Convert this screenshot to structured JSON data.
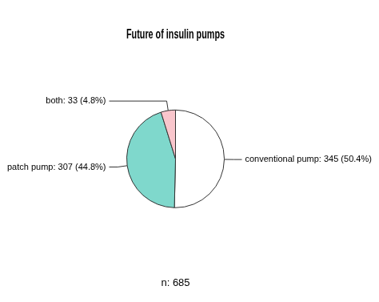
{
  "chart_data": {
    "type": "pie",
    "title": "Future of insulin pumps",
    "categories": [
      "conventional pump: 345 (50.4%)",
      "patch pump: 307 (44.8%)",
      "both: 33 (4.8%)"
    ],
    "values": [
      345,
      307,
      33
    ],
    "colors": [
      "#ffffff",
      "#7fd8cc",
      "#f9c6cc"
    ],
    "annotations": [
      "n: 685"
    ]
  }
}
